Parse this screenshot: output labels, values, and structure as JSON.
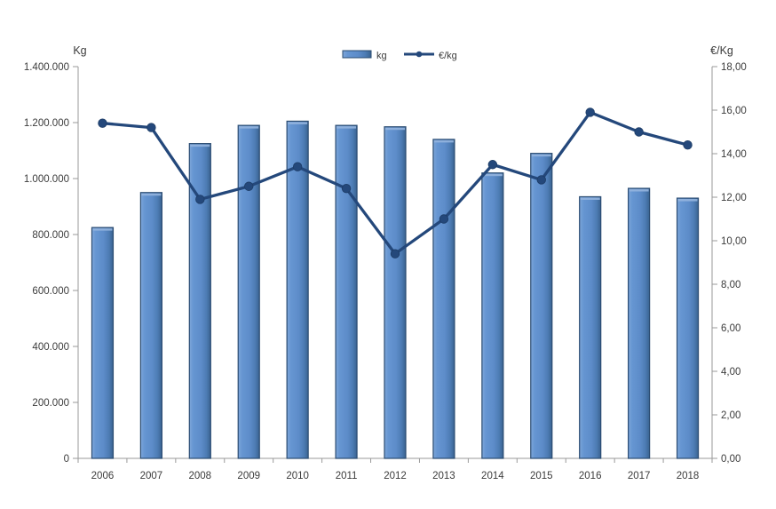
{
  "chart_data": {
    "type": "bar+line",
    "categories": [
      "2006",
      "2007",
      "2008",
      "2009",
      "2010",
      "2011",
      "2012",
      "2013",
      "2014",
      "2015",
      "2016",
      "2017",
      "2018"
    ],
    "series": [
      {
        "name": "kg",
        "type": "bar",
        "axis": "left",
        "values": [
          825000,
          950000,
          1125000,
          1190000,
          1205000,
          1190000,
          1185000,
          1140000,
          1020000,
          1090000,
          935000,
          965000,
          930000
        ]
      },
      {
        "name": "€/kg",
        "type": "line",
        "axis": "right",
        "values": [
          15.4,
          15.2,
          11.9,
          12.5,
          13.4,
          12.4,
          9.4,
          11.0,
          13.5,
          12.8,
          15.9,
          15.0,
          14.4
        ]
      }
    ],
    "left_axis": {
      "title": "Kg",
      "min": 0,
      "max": 1400000,
      "step": 200000,
      "tick_labels": [
        "0",
        "200.000",
        "400.000",
        "600.000",
        "800.000",
        "1.000.000",
        "1.200.000",
        "1.400.000"
      ]
    },
    "right_axis": {
      "title": "€/Kg",
      "min": 0,
      "max": 18,
      "step": 2,
      "tick_labels": [
        "0,00",
        "2,00",
        "4,00",
        "6,00",
        "8,00",
        "10,00",
        "12,00",
        "14,00",
        "16,00",
        "18,00"
      ]
    },
    "legend": {
      "position": "top-center",
      "entries": [
        {
          "label": "kg",
          "marker": "bar-swatch"
        },
        {
          "label": "€/kg",
          "marker": "line-marker"
        }
      ]
    },
    "grid": false,
    "title": "",
    "colors": {
      "bar_fill": "#5d8cc9",
      "bar_fill_light": "#7ea6d9",
      "bar_fill_dark": "#3a6390",
      "bar_border": "#2b4c72",
      "bar_top_cap": "#93b4de",
      "line": "#24487b",
      "axis_line": "#9a9a9a",
      "text": "#3b3b3b"
    }
  }
}
